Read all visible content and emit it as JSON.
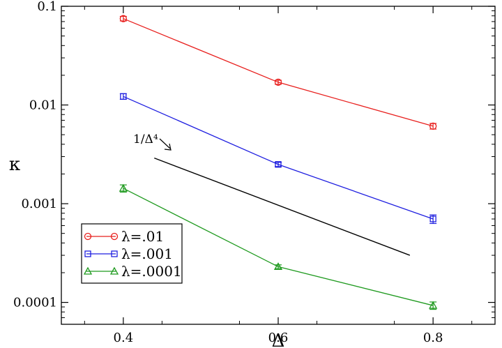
{
  "chart_data": {
    "type": "line",
    "xlabel": "Δ",
    "ylabel": "κ",
    "xscale": "linear",
    "yscale": "log",
    "xlim": [
      0.32,
      0.88
    ],
    "ylim": [
      6e-05,
      0.1
    ],
    "xticks": [
      {
        "value": 0.4,
        "label": "0.4"
      },
      {
        "value": 0.6,
        "label": "0.6"
      },
      {
        "value": 0.8,
        "label": "0.8"
      }
    ],
    "yticks": [
      {
        "value": 0.0001,
        "label": "0.0001"
      },
      {
        "value": 0.001,
        "label": "0.001"
      },
      {
        "value": 0.01,
        "label": "0.01"
      },
      {
        "value": 0.1,
        "label": "0.1"
      }
    ],
    "grid": false,
    "legend_position": "bottom-left",
    "series": [
      {
        "name": "λ=.01",
        "color": "#e8201e",
        "marker": "circle",
        "x": [
          0.4,
          0.6,
          0.8
        ],
        "y": [
          0.075,
          0.017,
          0.0061
        ],
        "yerr": [
          0.004,
          0.0008,
          0.0004
        ]
      },
      {
        "name": "λ=.001",
        "color": "#1f1fe0",
        "marker": "square",
        "x": [
          0.4,
          0.6,
          0.8
        ],
        "y": [
          0.0122,
          0.0025,
          0.0007
        ],
        "yerr": [
          0.0008,
          0.00012,
          7e-05
        ]
      },
      {
        "name": "λ=.0001",
        "color": "#1f9a1f",
        "marker": "triangle",
        "x": [
          0.4,
          0.6,
          0.8
        ],
        "y": [
          0.00143,
          0.00023,
          9.3e-05
        ],
        "yerr": [
          0.00012,
          1e-05,
          8e-06
        ]
      }
    ],
    "reference_line": {
      "label": "1/Δ⁴",
      "color": "#000000",
      "x": [
        0.44,
        0.77
      ],
      "y": [
        0.0029,
        0.0003
      ]
    }
  }
}
